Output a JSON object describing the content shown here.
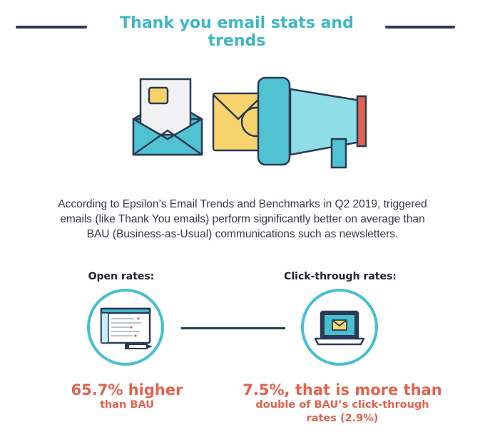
{
  "header": {
    "title": "Thank you email stats and trends"
  },
  "intro": {
    "line1": "According to Epsilon’s Email Trends and Benchmarks in Q2 2019, triggered",
    "line2": "emails (like Thank You emails) perform significantly better on average than",
    "line3": "BAU (Business-as-Usual) communications such as newsletters."
  },
  "stats": {
    "open": {
      "label": "Open rates:",
      "main": "65.7% higher",
      "sub": "than BAU",
      "icon": "browser-window-icon"
    },
    "click": {
      "label": "Click-through rates:",
      "main": "7.5%, that is more than",
      "sub1": "double of BAU’s click-through",
      "sub2": "rates (2.9%)",
      "icon": "laptop-email-icon"
    }
  },
  "colors": {
    "teal": "#3fb6c6",
    "navy": "#2b3a55",
    "coral": "#e2624d",
    "yellow": "#f6d36b"
  }
}
